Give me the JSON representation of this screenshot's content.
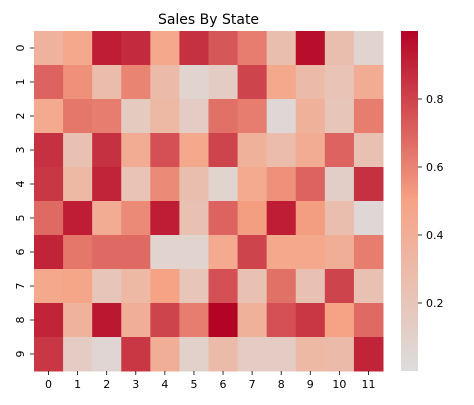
{
  "chart_data": {
    "type": "heatmap",
    "title": "Sales By State",
    "xlabel": "",
    "ylabel": "",
    "x_ticks": [
      "0",
      "1",
      "2",
      "3",
      "4",
      "5",
      "6",
      "7",
      "8",
      "9",
      "10",
      "11"
    ],
    "y_ticks": [
      "0",
      "1",
      "2",
      "3",
      "4",
      "5",
      "6",
      "7",
      "8",
      "9"
    ],
    "colormap": "coolwarm (center section)",
    "vmin": 0.0,
    "vmax": 1.0,
    "colorbar_ticks": [
      "0.2",
      "0.4",
      "0.6",
      "0.8"
    ],
    "colorbar_tick_values": [
      0.2,
      0.4,
      0.6,
      0.8
    ],
    "values": [
      [
        0.36,
        0.46,
        0.92,
        0.88,
        0.46,
        0.86,
        0.74,
        0.62,
        0.26,
        0.97,
        0.26,
        0.08
      ],
      [
        0.7,
        0.56,
        0.28,
        0.6,
        0.3,
        0.08,
        0.14,
        0.8,
        0.46,
        0.3,
        0.22,
        0.42
      ],
      [
        0.44,
        0.64,
        0.62,
        0.16,
        0.32,
        0.14,
        0.66,
        0.62,
        0.04,
        0.38,
        0.2,
        0.62
      ],
      [
        0.86,
        0.24,
        0.86,
        0.42,
        0.76,
        0.46,
        0.8,
        0.38,
        0.28,
        0.42,
        0.7,
        0.24
      ],
      [
        0.84,
        0.32,
        0.9,
        0.22,
        0.58,
        0.26,
        0.08,
        0.44,
        0.56,
        0.7,
        0.12,
        0.86
      ],
      [
        0.68,
        0.92,
        0.42,
        0.58,
        0.92,
        0.24,
        0.7,
        0.52,
        0.92,
        0.52,
        0.26,
        0.04
      ],
      [
        0.9,
        0.64,
        0.68,
        0.68,
        0.08,
        0.08,
        0.44,
        0.8,
        0.46,
        0.46,
        0.4,
        0.62
      ],
      [
        0.46,
        0.48,
        0.2,
        0.32,
        0.5,
        0.2,
        0.76,
        0.24,
        0.66,
        0.24,
        0.8,
        0.24
      ],
      [
        0.9,
        0.36,
        0.94,
        0.4,
        0.8,
        0.62,
        1.0,
        0.38,
        0.76,
        0.84,
        0.5,
        0.68
      ],
      [
        0.84,
        0.14,
        0.06,
        0.84,
        0.4,
        0.1,
        0.3,
        0.14,
        0.14,
        0.32,
        0.3,
        0.9
      ]
    ]
  },
  "colors": {
    "low": "#dddcdc",
    "mid": "#f6a385",
    "high": "#b40426"
  }
}
